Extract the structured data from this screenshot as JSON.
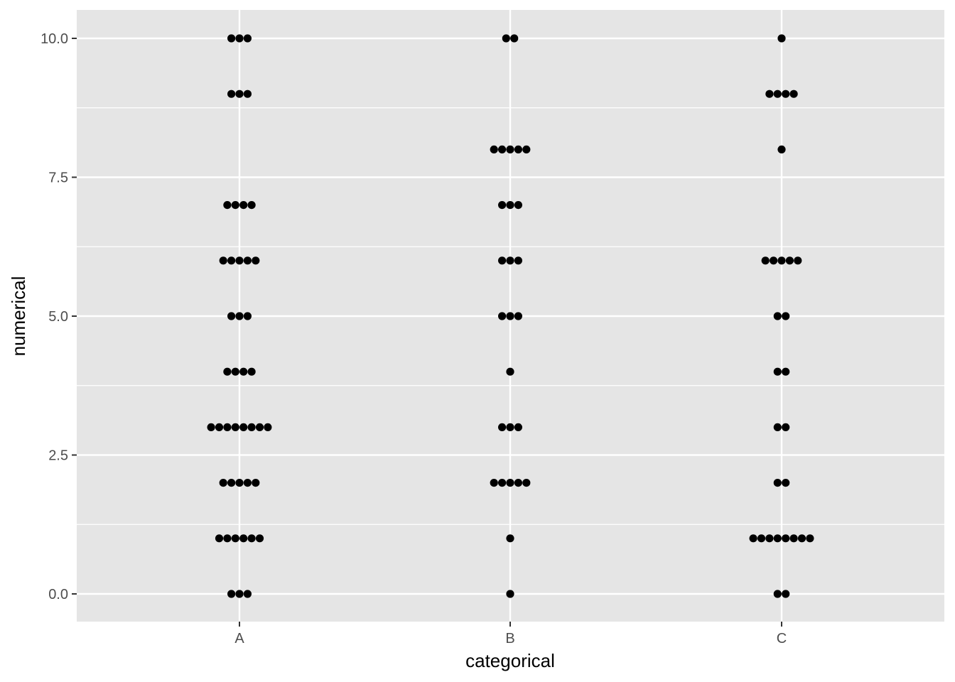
{
  "chart_data": {
    "type": "scatter",
    "subtype": "categorical dot plot (stacked dots)",
    "title": "",
    "xlabel": "categorical",
    "ylabel": "numerical",
    "categories": [
      "A",
      "B",
      "C"
    ],
    "ylim": [
      -0.5,
      10.5
    ],
    "y_ticks": [
      "0.0",
      "2.5",
      "5.0",
      "7.5",
      "10.0"
    ],
    "y_tick_values": [
      0,
      2.5,
      5,
      7.5,
      10
    ],
    "grid": true,
    "legend": "none",
    "panel_color": "#e5e5e5",
    "grid_color": "#ffffff",
    "point_color": "#000000",
    "series": [
      {
        "category": "A",
        "points": [
          {
            "y": 0,
            "count": 3
          },
          {
            "y": 1,
            "count": 6
          },
          {
            "y": 2,
            "count": 5
          },
          {
            "y": 3,
            "count": 8
          },
          {
            "y": 4,
            "count": 4
          },
          {
            "y": 5,
            "count": 3
          },
          {
            "y": 6,
            "count": 5
          },
          {
            "y": 7,
            "count": 4
          },
          {
            "y": 9,
            "count": 3
          },
          {
            "y": 10,
            "count": 3
          }
        ]
      },
      {
        "category": "B",
        "points": [
          {
            "y": 0,
            "count": 1
          },
          {
            "y": 1,
            "count": 1
          },
          {
            "y": 2,
            "count": 5
          },
          {
            "y": 3,
            "count": 3
          },
          {
            "y": 4,
            "count": 1
          },
          {
            "y": 5,
            "count": 3
          },
          {
            "y": 6,
            "count": 3
          },
          {
            "y": 7,
            "count": 3
          },
          {
            "y": 8,
            "count": 5
          },
          {
            "y": 10,
            "count": 2
          }
        ]
      },
      {
        "category": "C",
        "points": [
          {
            "y": 0,
            "count": 2
          },
          {
            "y": 1,
            "count": 8
          },
          {
            "y": 2,
            "count": 2
          },
          {
            "y": 3,
            "count": 2
          },
          {
            "y": 4,
            "count": 2
          },
          {
            "y": 5,
            "count": 2
          },
          {
            "y": 6,
            "count": 5
          },
          {
            "y": 8,
            "count": 1
          },
          {
            "y": 9,
            "count": 4
          },
          {
            "y": 10,
            "count": 1
          }
        ]
      }
    ]
  }
}
